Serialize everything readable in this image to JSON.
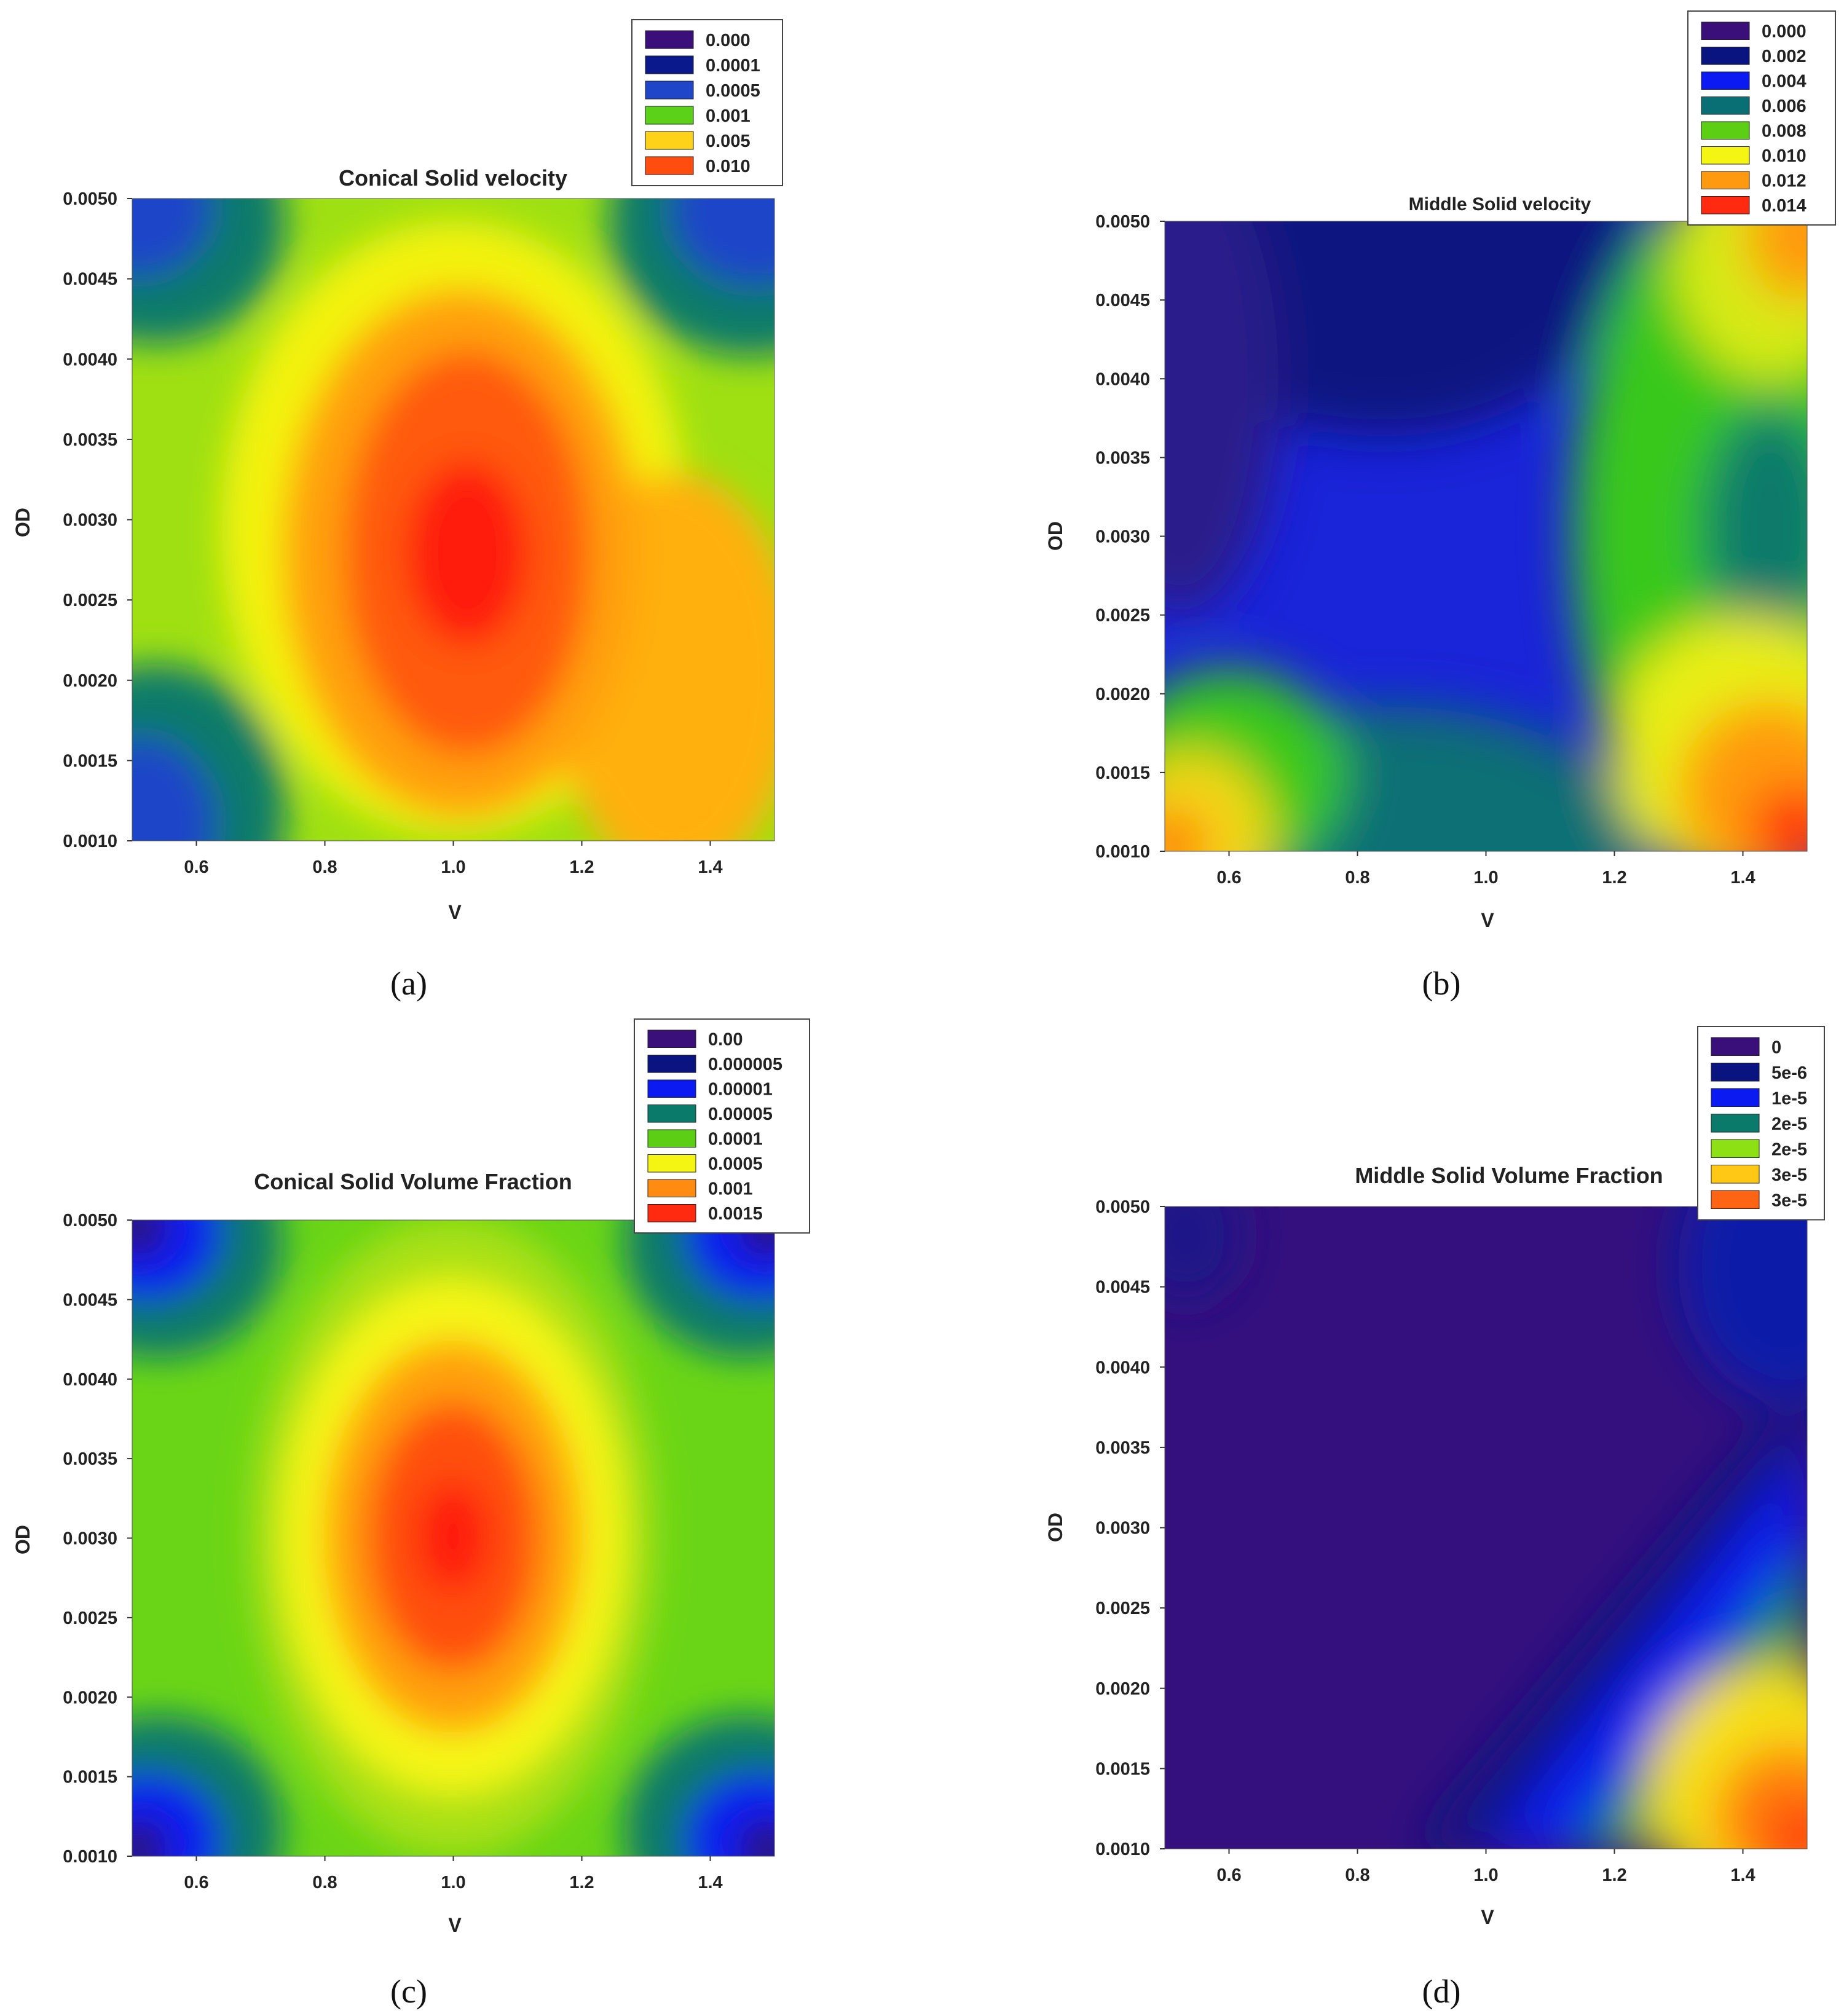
{
  "chart_data": [
    {
      "type": "contour",
      "caption": "(a)",
      "title": "Conical Solid velocity",
      "xlabel": "V",
      "ylabel": "OD",
      "xlim": [
        0.5,
        1.5
      ],
      "ylim": [
        0.001,
        0.005
      ],
      "xticks": [
        "0.6",
        "0.8",
        "1.0",
        "1.2",
        "1.4"
      ],
      "yticks": [
        "0.0010",
        "0.0015",
        "0.0020",
        "0.0025",
        "0.0030",
        "0.0035",
        "0.0040",
        "0.0045",
        "0.0050"
      ],
      "legend": [
        {
          "label": "0.000",
          "color": "#3b0f7a"
        },
        {
          "label": "0.0001",
          "color": "#0a1a8c"
        },
        {
          "label": "0.0005",
          "color": "#1f45c8"
        },
        {
          "label": "0.001",
          "color": "#5bd11a"
        },
        {
          "label": "0.005",
          "color": "#ffd21a"
        },
        {
          "label": "0.010",
          "color": "#ff4d10"
        }
      ]
    },
    {
      "type": "contour",
      "caption": "(b)",
      "title": "Middle Solid velocity",
      "xlabel": "V",
      "ylabel": "OD",
      "xlim": [
        0.5,
        1.5
      ],
      "ylim": [
        0.001,
        0.005
      ],
      "xticks": [
        "0.6",
        "0.8",
        "1.0",
        "1.2",
        "1.4"
      ],
      "yticks": [
        "0.0010",
        "0.0015",
        "0.0020",
        "0.0025",
        "0.0030",
        "0.0035",
        "0.0040",
        "0.0045",
        "0.0050"
      ],
      "legend": [
        {
          "label": "0.000",
          "color": "#3b0f7a"
        },
        {
          "label": "0.002",
          "color": "#0a1480"
        },
        {
          "label": "0.004",
          "color": "#0a1af0"
        },
        {
          "label": "0.006",
          "color": "#0a6f74"
        },
        {
          "label": "0.008",
          "color": "#5ccf14"
        },
        {
          "label": "0.010",
          "color": "#f5f514"
        },
        {
          "label": "0.012",
          "color": "#ff9a10"
        },
        {
          "label": "0.014",
          "color": "#ff2a10"
        }
      ]
    },
    {
      "type": "contour",
      "caption": "(c)",
      "title": "Conical Solid Volume Fraction",
      "xlabel": "V",
      "ylabel": "OD",
      "xlim": [
        0.5,
        1.5
      ],
      "ylim": [
        0.001,
        0.005
      ],
      "xticks": [
        "0.6",
        "0.8",
        "1.0",
        "1.2",
        "1.4"
      ],
      "yticks": [
        "0.0010",
        "0.0015",
        "0.0020",
        "0.0025",
        "0.0030",
        "0.0035",
        "0.0040",
        "0.0045",
        "0.0050"
      ],
      "legend": [
        {
          "label": "0.00",
          "color": "#3b0f7a"
        },
        {
          "label": "0.000005",
          "color": "#0a1480"
        },
        {
          "label": "0.00001",
          "color": "#0a1af0"
        },
        {
          "label": "0.00005",
          "color": "#0a7a6a"
        },
        {
          "label": "0.0001",
          "color": "#5ccf14"
        },
        {
          "label": "0.0005",
          "color": "#f5f514"
        },
        {
          "label": "0.001",
          "color": "#ff8c10"
        },
        {
          "label": "0.0015",
          "color": "#ff2a10"
        }
      ]
    },
    {
      "type": "contour",
      "caption": "(d)",
      "title": "Middle Solid Volume Fraction",
      "xlabel": "V",
      "ylabel": "OD",
      "xlim": [
        0.5,
        1.5
      ],
      "ylim": [
        0.001,
        0.005
      ],
      "xticks": [
        "0.6",
        "0.8",
        "1.0",
        "1.2",
        "1.4"
      ],
      "yticks": [
        "0.0010",
        "0.0015",
        "0.0020",
        "0.0025",
        "0.0030",
        "0.0035",
        "0.0040",
        "0.0045",
        "0.0050"
      ],
      "legend": [
        {
          "label": "0",
          "color": "#3b0f7a"
        },
        {
          "label": "5e-6",
          "color": "#0a1480"
        },
        {
          "label": "1e-5",
          "color": "#0a1af0"
        },
        {
          "label": "2e-5",
          "color": "#0a7a6a"
        },
        {
          "label": "2e-5",
          "color": "#8ce014"
        },
        {
          "label": "3e-5",
          "color": "#ffc814"
        },
        {
          "label": "3e-5",
          "color": "#ff6414"
        }
      ]
    }
  ]
}
